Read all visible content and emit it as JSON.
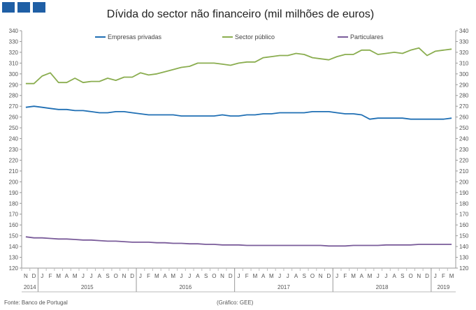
{
  "chart_data": {
    "type": "line",
    "title": "Dívida do sector não financeiro (mil milhões de euros)",
    "ylim": [
      120,
      340
    ],
    "y_ticks": [
      120,
      130,
      140,
      150,
      160,
      170,
      180,
      190,
      200,
      210,
      220,
      230,
      240,
      250,
      260,
      270,
      280,
      290,
      300,
      310,
      320,
      330,
      340
    ],
    "grid": false,
    "legend_position": "top",
    "month_labels": [
      "N",
      "D",
      "J",
      "F",
      "M",
      "A",
      "M",
      "J",
      "J",
      "A",
      "S",
      "O",
      "N",
      "D",
      "J",
      "F",
      "M",
      "A",
      "M",
      "J",
      "J",
      "A",
      "S",
      "O",
      "N",
      "D",
      "J",
      "F",
      "M",
      "A",
      "M",
      "J",
      "J",
      "A",
      "S",
      "O",
      "N",
      "D",
      "J",
      "F",
      "M",
      "A",
      "M",
      "J",
      "J",
      "A",
      "S",
      "O",
      "N",
      "D",
      "J",
      "F",
      "M"
    ],
    "year_groups": [
      {
        "label": "2014",
        "start": 0,
        "end": 1
      },
      {
        "label": "2015",
        "start": 2,
        "end": 13
      },
      {
        "label": "2016",
        "start": 14,
        "end": 25
      },
      {
        "label": "2017",
        "start": 26,
        "end": 37
      },
      {
        "label": "2018",
        "start": 38,
        "end": 49
      },
      {
        "label": "2019",
        "start": 50,
        "end": 52
      }
    ],
    "series": [
      {
        "name": "Empresas privadas",
        "color": "#1f6fb4",
        "values": [
          269,
          270,
          269,
          268,
          267,
          267,
          266,
          266,
          265,
          264,
          264,
          265,
          265,
          264,
          263,
          262,
          262,
          262,
          262,
          261,
          261,
          261,
          261,
          261,
          262,
          261,
          261,
          262,
          262,
          263,
          263,
          264,
          264,
          264,
          264,
          265,
          265,
          265,
          264,
          263,
          263,
          262,
          258,
          259,
          259,
          259,
          259,
          258,
          258,
          258,
          258,
          258,
          259
        ]
      },
      {
        "name": "Sector público",
        "color": "#8aad4f",
        "values": [
          291,
          291,
          298,
          301,
          292,
          292,
          296,
          292,
          293,
          293,
          296,
          294,
          297,
          297,
          301,
          299,
          300,
          302,
          304,
          306,
          307,
          310,
          310,
          310,
          309,
          308,
          310,
          311,
          311,
          315,
          316,
          317,
          317,
          319,
          318,
          315,
          314,
          313,
          316,
          318,
          318,
          322,
          322,
          318,
          319,
          320,
          319,
          322,
          324,
          317,
          321,
          322,
          323
        ]
      },
      {
        "name": "Particulares",
        "color": "#7a5c9a",
        "values": [
          149,
          148,
          148,
          147.5,
          147,
          147,
          146.5,
          146,
          146,
          145.5,
          145,
          145,
          144.5,
          144,
          144,
          144,
          143.5,
          143.5,
          143,
          143,
          142.5,
          142.5,
          142,
          142,
          141.5,
          141.5,
          141.5,
          141,
          141,
          141,
          141,
          141,
          141,
          141,
          141,
          141,
          141,
          140.5,
          140.5,
          140.5,
          141,
          141,
          141,
          141,
          141.5,
          141.5,
          141.5,
          141.5,
          142,
          142,
          142,
          142,
          142
        ]
      }
    ]
  },
  "footer": {
    "source": "Fonte: Banco de Portugal",
    "credit": "(Gráfico: GEE)"
  }
}
